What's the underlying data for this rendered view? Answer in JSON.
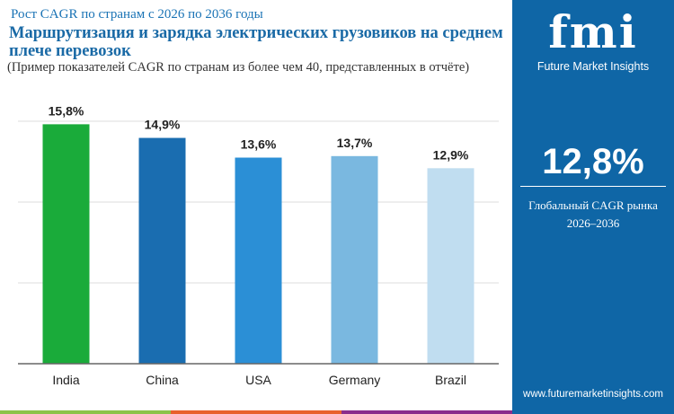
{
  "header": {
    "subtitle_top": "Рост CAGR по странам с 2026 по 2036 годы",
    "title": "Маршрутизация и зарядка электрических грузовиков на среднем плече перевозок",
    "note": "(Пример показателей CAGR по странам из более чем 40, представленных в отчёте)"
  },
  "sidebar": {
    "logo_text": "fmi",
    "brand": "Future Market Insights",
    "cagr_value": "12,8%",
    "cagr_label": "Глобальный CAGR рынка",
    "cagr_period": "2026–2036",
    "url": "www.futuremarketinsights.com",
    "background": "#0f66a6"
  },
  "chart_data": {
    "type": "bar",
    "categories": [
      "India",
      "China",
      "USA",
      "Germany",
      "Brazil"
    ],
    "values": [
      15.8,
      14.9,
      13.6,
      13.7,
      12.9
    ],
    "data_labels": [
      "15,8%",
      "14,9%",
      "13,6%",
      "13,7%",
      "12,9%"
    ],
    "colors": [
      "#1aab3a",
      "#1a6db0",
      "#2b8fd6",
      "#7ab8e0",
      "#c0ddf0"
    ],
    "ylim": [
      0,
      16
    ],
    "grid": true,
    "xlabel": "",
    "ylabel": ""
  },
  "footer_strip_colors": [
    "#8bc34a",
    "#e8612c",
    "#8a2d8c"
  ]
}
